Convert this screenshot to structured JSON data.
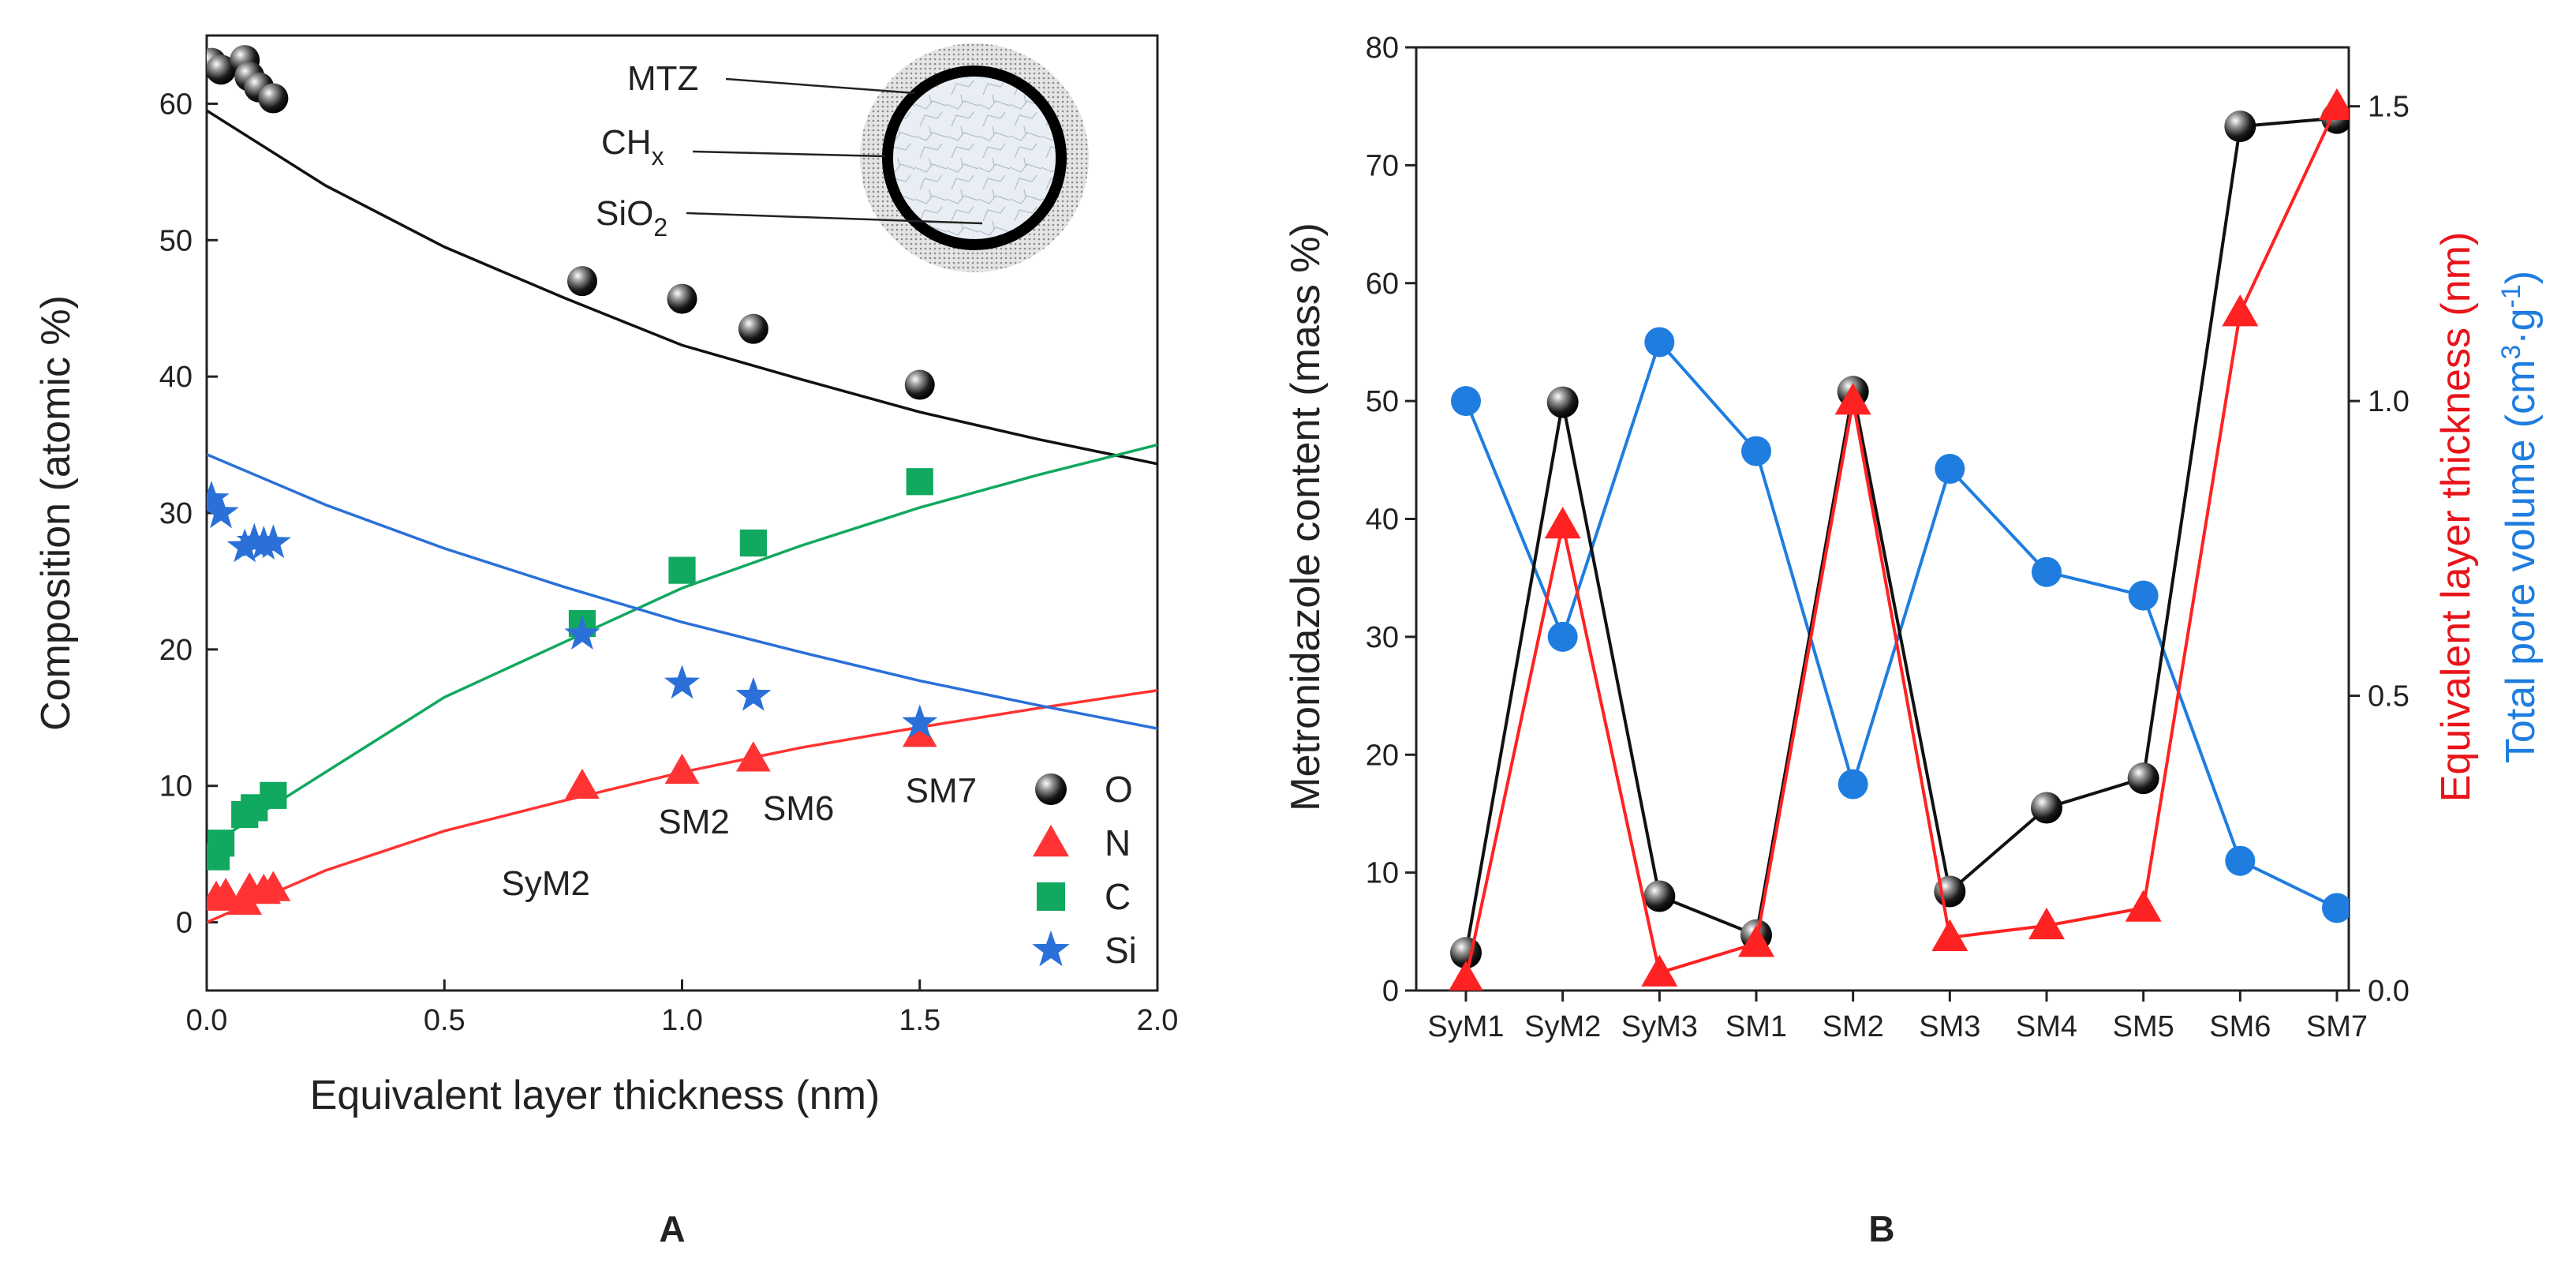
{
  "chart_data": [
    {
      "type": "scatter",
      "panel_label": "A",
      "xlabel": "Equivalent layer thickness (nm)",
      "ylabel": "Composition (atomic %)",
      "xlim": [
        0.0,
        2.0
      ],
      "ylim": [
        -5,
        65
      ],
      "xticks": [
        "0.0",
        "0.5",
        "1.0",
        "1.5",
        "2.0"
      ],
      "yticks": [
        "0",
        "10",
        "20",
        "30",
        "40",
        "50",
        "60"
      ],
      "colors": {
        "O": "#111111",
        "N": "#ff3333",
        "C": "#11a860",
        "Si": "#2a70d8"
      },
      "series": [
        {
          "name": "O",
          "marker": "sphere",
          "points": [
            [
              0.01,
              63.0
            ],
            [
              0.03,
              62.5
            ],
            [
              0.08,
              63.2
            ],
            [
              0.09,
              62.0
            ],
            [
              0.11,
              61.2
            ],
            [
              0.14,
              60.4
            ],
            [
              0.79,
              47.0
            ],
            [
              1.0,
              45.7
            ],
            [
              1.15,
              43.5
            ],
            [
              1.5,
              39.4
            ]
          ],
          "fit": [
            [
              0.0,
              59.5
            ],
            [
              0.25,
              54.0
            ],
            [
              0.5,
              49.5
            ],
            [
              0.75,
              45.8
            ],
            [
              1.0,
              42.3
            ],
            [
              1.25,
              39.8
            ],
            [
              1.5,
              37.4
            ],
            [
              1.75,
              35.4
            ],
            [
              2.0,
              33.6
            ]
          ]
        },
        {
          "name": "N",
          "marker": "triangle",
          "points": [
            [
              0.02,
              1.8
            ],
            [
              0.04,
              2.0
            ],
            [
              0.08,
              1.5
            ],
            [
              0.09,
              2.4
            ],
            [
              0.12,
              2.3
            ],
            [
              0.14,
              2.5
            ],
            [
              0.79,
              10.0
            ],
            [
              1.0,
              11.1
            ],
            [
              1.15,
              12.0
            ],
            [
              1.5,
              13.8
            ]
          ],
          "fit": [
            [
              0.0,
              0.0
            ],
            [
              0.25,
              3.8
            ],
            [
              0.5,
              6.7
            ],
            [
              0.75,
              8.9
            ],
            [
              1.0,
              11.0
            ],
            [
              1.25,
              12.8
            ],
            [
              1.5,
              14.3
            ],
            [
              1.75,
              15.7
            ],
            [
              2.0,
              17.0
            ]
          ]
        },
        {
          "name": "C",
          "marker": "square",
          "points": [
            [
              0.02,
              4.8
            ],
            [
              0.03,
              5.8
            ],
            [
              0.08,
              7.9
            ],
            [
              0.1,
              8.4
            ],
            [
              0.14,
              9.3
            ],
            [
              0.79,
              21.9
            ],
            [
              1.0,
              25.8
            ],
            [
              1.15,
              27.8
            ],
            [
              1.5,
              32.3
            ]
          ],
          "fit": [
            [
              0.0,
              5.5
            ],
            [
              0.25,
              11.0
            ],
            [
              0.5,
              16.5
            ],
            [
              0.75,
              20.5
            ],
            [
              1.0,
              24.5
            ],
            [
              1.25,
              27.6
            ],
            [
              1.5,
              30.4
            ],
            [
              1.75,
              32.8
            ],
            [
              2.0,
              35.0
            ]
          ]
        },
        {
          "name": "Si",
          "marker": "star",
          "points": [
            [
              0.01,
              31.0
            ],
            [
              0.03,
              30.0
            ],
            [
              0.08,
              27.5
            ],
            [
              0.1,
              27.9
            ],
            [
              0.12,
              27.7
            ],
            [
              0.14,
              27.8
            ],
            [
              0.79,
              21.1
            ],
            [
              1.0,
              17.5
            ],
            [
              1.15,
              16.6
            ],
            [
              1.5,
              14.6
            ]
          ],
          "fit": [
            [
              0.0,
              34.3
            ],
            [
              0.25,
              30.6
            ],
            [
              0.5,
              27.4
            ],
            [
              0.75,
              24.6
            ],
            [
              1.0,
              22.0
            ],
            [
              1.25,
              19.8
            ],
            [
              1.5,
              17.7
            ],
            [
              1.75,
              15.9
            ],
            [
              2.0,
              14.2
            ]
          ]
        }
      ],
      "annotations": [
        {
          "text": "SyM2",
          "x": 0.62,
          "y": 2.0
        },
        {
          "text": "SM2",
          "x": 0.95,
          "y": 6.5
        },
        {
          "text": "SM6",
          "x": 1.17,
          "y": 7.5
        },
        {
          "text": "SM7",
          "x": 1.47,
          "y": 8.8
        }
      ],
      "inset": {
        "labels": [
          "MTZ",
          "CH",
          "SiO"
        ],
        "subscripts": [
          "x",
          "2"
        ]
      }
    },
    {
      "type": "line",
      "panel_label": "B",
      "categories": [
        "SyM1",
        "SyM2",
        "SyM3",
        "SM1",
        "SM2",
        "SM3",
        "SM4",
        "SM5",
        "SM6",
        "SM7"
      ],
      "ylabel": "Metronidazole content (mass %)",
      "ylim": [
        0,
        80
      ],
      "yticks": [
        "0",
        "10",
        "20",
        "30",
        "40",
        "50",
        "60",
        "70",
        "80"
      ],
      "y2label_red": "Equivalent layer thickness (nm)",
      "y2label_blue_prefix": "Total pore volume (cm",
      "y2label_blue_mid": "·g",
      "y2label_blue_end": ")",
      "y2label_blue_sup1": "3",
      "y2label_blue_sup2": "-1",
      "y2lim": [
        0.0,
        1.6
      ],
      "y2ticks": [
        "0.0",
        "0.5",
        "1.0",
        "1.5"
      ],
      "series": [
        {
          "name": "Metronidazole content",
          "axis": "left",
          "color": "#111111",
          "marker": "sphere",
          "values": [
            3.2,
            49.9,
            8.0,
            4.7,
            50.8,
            8.4,
            15.5,
            18.0,
            73.3,
            74.0
          ]
        },
        {
          "name": "Equivalent layer thickness",
          "axis": "right",
          "color": "#ff2222",
          "marker": "triangle",
          "values": [
            0.02,
            0.79,
            0.03,
            0.08,
            1.0,
            0.09,
            0.11,
            0.14,
            1.15,
            1.5
          ]
        },
        {
          "name": "Total pore volume",
          "axis": "right",
          "color": "#1f7de0",
          "marker": "circle",
          "values": [
            1.0,
            0.6,
            1.1,
            0.915,
            0.35,
            0.885,
            0.71,
            0.67,
            0.22,
            0.14
          ]
        }
      ]
    }
  ]
}
